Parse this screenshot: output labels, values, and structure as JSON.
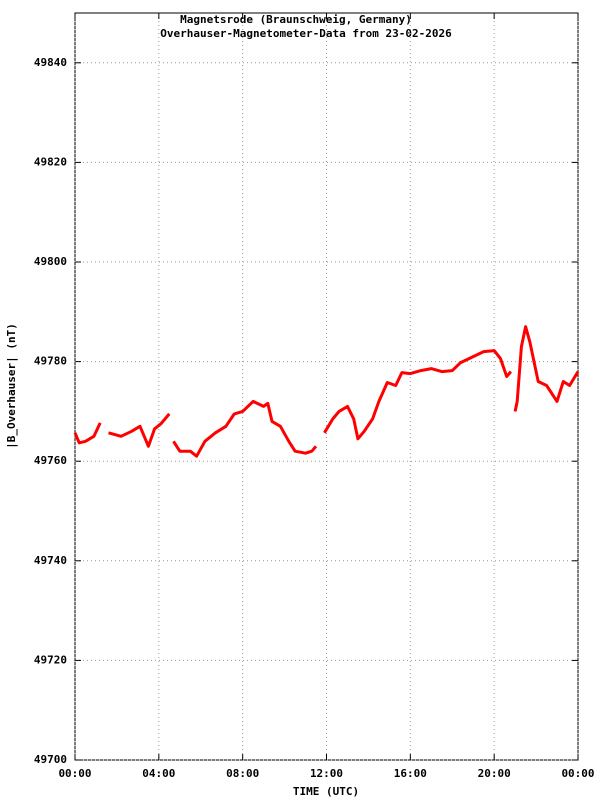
{
  "chart_data": {
    "type": "line",
    "title": "Magnetsrode (Braunschweig, Germany)",
    "subtitle": "Overhauser-Magnetometer-Data from 23-02-2026",
    "x_label": "TIME (UTC)",
    "y_label": "|B_Overhauser| (nT)",
    "xlim": [
      0,
      24
    ],
    "xticks": [
      {
        "value": 0,
        "label": "00:00"
      },
      {
        "value": 4,
        "label": "04:00"
      },
      {
        "value": 8,
        "label": "08:00"
      },
      {
        "value": 12,
        "label": "12:00"
      },
      {
        "value": 16,
        "label": "16:00"
      },
      {
        "value": 20,
        "label": "20:00"
      },
      {
        "value": 24,
        "label": "00:00"
      }
    ],
    "ylim": [
      49700,
      49850
    ],
    "yticks": [
      49700,
      49720,
      49740,
      49760,
      49780,
      49800,
      49820,
      49840
    ],
    "grid": true,
    "x": [
      0.0,
      0.2,
      0.5,
      0.9,
      1.2,
      1.4,
      1.6,
      2.2,
      2.7,
      3.1,
      3.5,
      3.8,
      4.1,
      4.5,
      4.6,
      4.7,
      5.0,
      5.5,
      5.8,
      6.2,
      6.7,
      7.2,
      7.6,
      8.0,
      8.5,
      9.0,
      9.2,
      9.4,
      9.8,
      10.2,
      10.5,
      11.0,
      11.3,
      11.5,
      11.7,
      11.9,
      12.3,
      12.6,
      13.0,
      13.3,
      13.5,
      13.8,
      14.2,
      14.5,
      14.9,
      15.3,
      15.6,
      16.0,
      16.5,
      17.0,
      17.5,
      18.0,
      18.4,
      19.0,
      19.5,
      20.0,
      20.3,
      20.6,
      20.8,
      20.9,
      21.0,
      21.1,
      21.3,
      21.5,
      21.7,
      21.9,
      22.1,
      22.5,
      23.0,
      23.3,
      23.6,
      24.0
    ],
    "series": [
      {
        "name": "|B_Overhauser|",
        "color": "#ff0000",
        "values": [
          49765.7,
          49763.7,
          49764,
          49765,
          49767.7,
          null,
          49765.7,
          49765,
          49766,
          49767,
          49763,
          49766.5,
          49767.5,
          49769.5,
          null,
          49764,
          49762,
          49762,
          49761,
          49764,
          49765.7,
          49767,
          49769.5,
          49770,
          49772,
          49771,
          49771.6,
          49768,
          49767,
          49764,
          49762,
          49761.6,
          49762,
          49763,
          null,
          49765.7,
          49768.5,
          49770,
          49771,
          49768.5,
          49764.5,
          49766,
          49768.5,
          49772,
          49775.8,
          49775.2,
          49777.8,
          49777.6,
          49778.2,
          49778.6,
          49778,
          49778.2,
          49779.8,
          49781,
          49782,
          49782.2,
          49780.6,
          49777,
          49778,
          null,
          49770,
          49772,
          49783,
          49787,
          49784,
          49780,
          49776,
          49775.2,
          49772,
          49776,
          49775.2,
          49778
        ]
      }
    ]
  }
}
